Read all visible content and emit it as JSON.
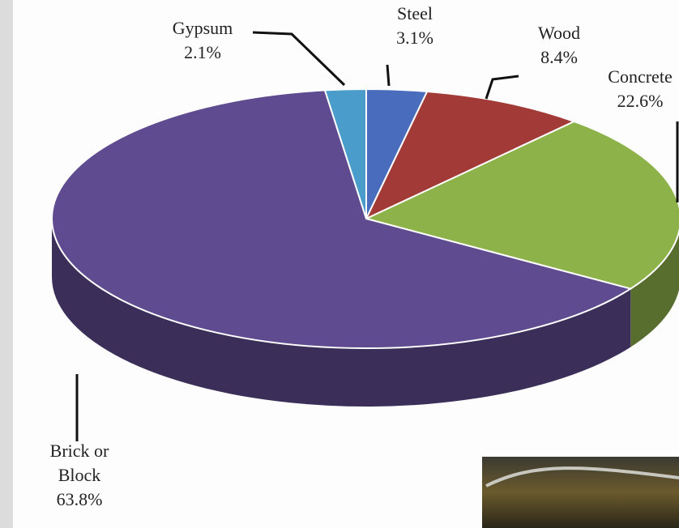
{
  "chart_data": {
    "type": "pie",
    "categories": [
      "Steel",
      "Wood",
      "Concrete",
      "Brick or Block",
      "Gypsum"
    ],
    "values": [
      3.1,
      8.4,
      22.6,
      63.8,
      2.1
    ],
    "value_labels": [
      "3.1%",
      "8.4%",
      "22.6%",
      "63.8%",
      "2.1%"
    ],
    "colors": [
      "#4a6cbc",
      "#a23b37",
      "#8db24a",
      "#5f4b8f",
      "#4a9dcb"
    ]
  }
}
